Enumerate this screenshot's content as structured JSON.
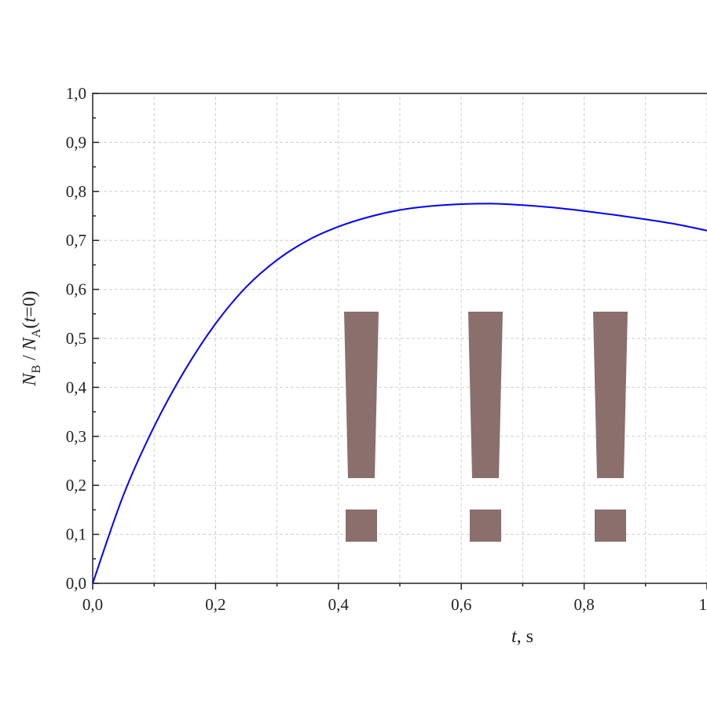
{
  "chart_data": {
    "type": "line",
    "xlabel": "t, s",
    "ylabel": "N_B / N_A(t=0)",
    "xlim": [
      0,
      1
    ],
    "ylim": [
      0,
      1
    ],
    "xticks": [
      "0,0",
      "0,2",
      "0,4",
      "0,6",
      "0,8",
      "1"
    ],
    "yticks": [
      "0,0",
      "0,1",
      "0,2",
      "0,3",
      "0,4",
      "0,5",
      "0,6",
      "0,7",
      "0,8",
      "0,9",
      "1,0"
    ],
    "grid": true,
    "series": [
      {
        "color": "#0000ff",
        "x": [
          0,
          0.05,
          0.1,
          0.15,
          0.2,
          0.25,
          0.3,
          0.35,
          0.4,
          0.45,
          0.5,
          0.55,
          0.6,
          0.65,
          0.7,
          0.75,
          0.8,
          0.85,
          0.9,
          0.95,
          1.0
        ],
        "y": [
          0,
          0.18,
          0.32,
          0.435,
          0.53,
          0.605,
          0.66,
          0.7,
          0.728,
          0.748,
          0.762,
          0.77,
          0.774,
          0.775,
          0.772,
          0.767,
          0.76,
          0.752,
          0.743,
          0.733,
          0.72
        ]
      }
    ]
  },
  "overlay": {
    "glyph": "!",
    "count": 3,
    "color": "#8b6f6d"
  }
}
